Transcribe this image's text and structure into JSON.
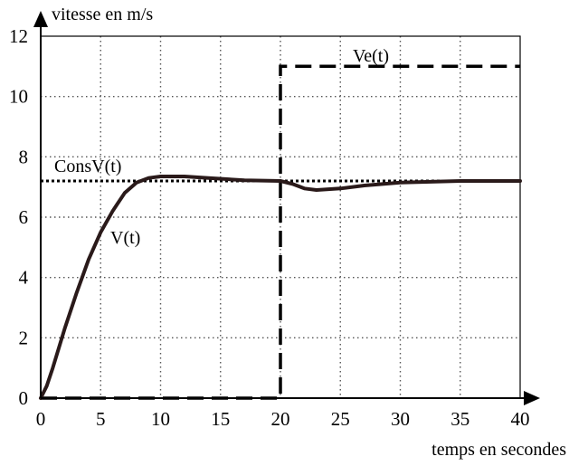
{
  "chart_data": {
    "type": "line",
    "title": "",
    "xlabel": "temps en secondes",
    "ylabel": "vitesse en m/s",
    "xlim": [
      0,
      40
    ],
    "ylim": [
      0,
      12
    ],
    "x_ticks": [
      "0",
      "5",
      "10",
      "15",
      "20",
      "25",
      "30",
      "35",
      "40"
    ],
    "y_ticks": [
      "0",
      "2",
      "4",
      "6",
      "8",
      "10",
      "12"
    ],
    "grid": true,
    "series": [
      {
        "name": "ConsV(t)",
        "style": "dotted",
        "color": "#000000",
        "points": [
          [
            0,
            7.2
          ],
          [
            40,
            7.2
          ]
        ]
      },
      {
        "name": "Ve(t)",
        "style": "dashed",
        "color": "#000000",
        "points": [
          [
            0,
            0
          ],
          [
            20,
            0
          ],
          [
            20,
            11
          ],
          [
            40,
            11
          ]
        ]
      },
      {
        "name": "V(t)",
        "style": "solid",
        "color": "#2a1a1a",
        "points": [
          [
            0,
            0
          ],
          [
            0.5,
            0.4
          ],
          [
            1,
            1.0
          ],
          [
            2,
            2.3
          ],
          [
            3,
            3.5
          ],
          [
            4,
            4.6
          ],
          [
            5,
            5.5
          ],
          [
            6,
            6.2
          ],
          [
            7,
            6.8
          ],
          [
            8,
            7.15
          ],
          [
            9,
            7.3
          ],
          [
            10,
            7.35
          ],
          [
            12,
            7.35
          ],
          [
            14,
            7.3
          ],
          [
            17,
            7.22
          ],
          [
            20,
            7.2
          ],
          [
            21,
            7.1
          ],
          [
            22,
            6.95
          ],
          [
            23,
            6.9
          ],
          [
            25,
            6.95
          ],
          [
            27,
            7.05
          ],
          [
            30,
            7.15
          ],
          [
            35,
            7.2
          ],
          [
            40,
            7.2
          ]
        ]
      }
    ]
  }
}
